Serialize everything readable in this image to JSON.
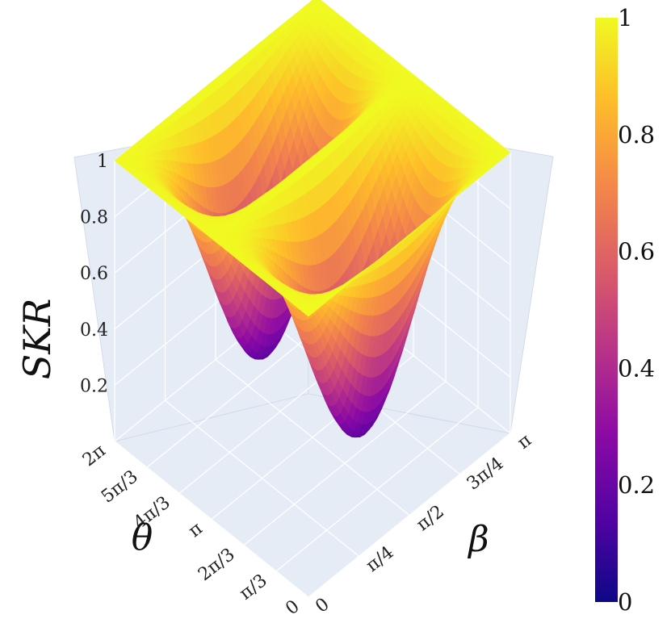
{
  "chart_data": {
    "type": "surface3d",
    "title": "",
    "zlabel": "SKR",
    "xlabel": "θ",
    "ylabel": "β",
    "zlim": [
      0,
      1
    ],
    "z_ticks": [
      "0.2",
      "0.4",
      "0.6",
      "0.8",
      "1"
    ],
    "theta_ticks": [
      "0",
      "π/3",
      "2π/3",
      "π",
      "4π/3",
      "5π/3",
      "2π"
    ],
    "beta_ticks": [
      "0",
      "π/4",
      "π/2",
      "3π/4",
      "π"
    ],
    "colorbar": {
      "range": [
        0,
        1
      ],
      "ticks": [
        "0",
        "0.2",
        "0.4",
        "0.6",
        "0.8",
        "1"
      ],
      "colorscale": "plasma",
      "colors": [
        "#0d0887",
        "#5302a3",
        "#8b0aa5",
        "#b83289",
        "#db5c68",
        "#f48849",
        "#febc2a",
        "#f0f921"
      ]
    },
    "surface": {
      "description": "SKR = 1 - 0.85·sin²(β)·f(θ); minima near θ = π/2 and θ = 3π/2 at β = π/2",
      "theta_range": [
        "0",
        "2π"
      ],
      "beta_range": [
        "0",
        "π"
      ],
      "min_value": 0.15,
      "max_value": 1.0
    }
  }
}
